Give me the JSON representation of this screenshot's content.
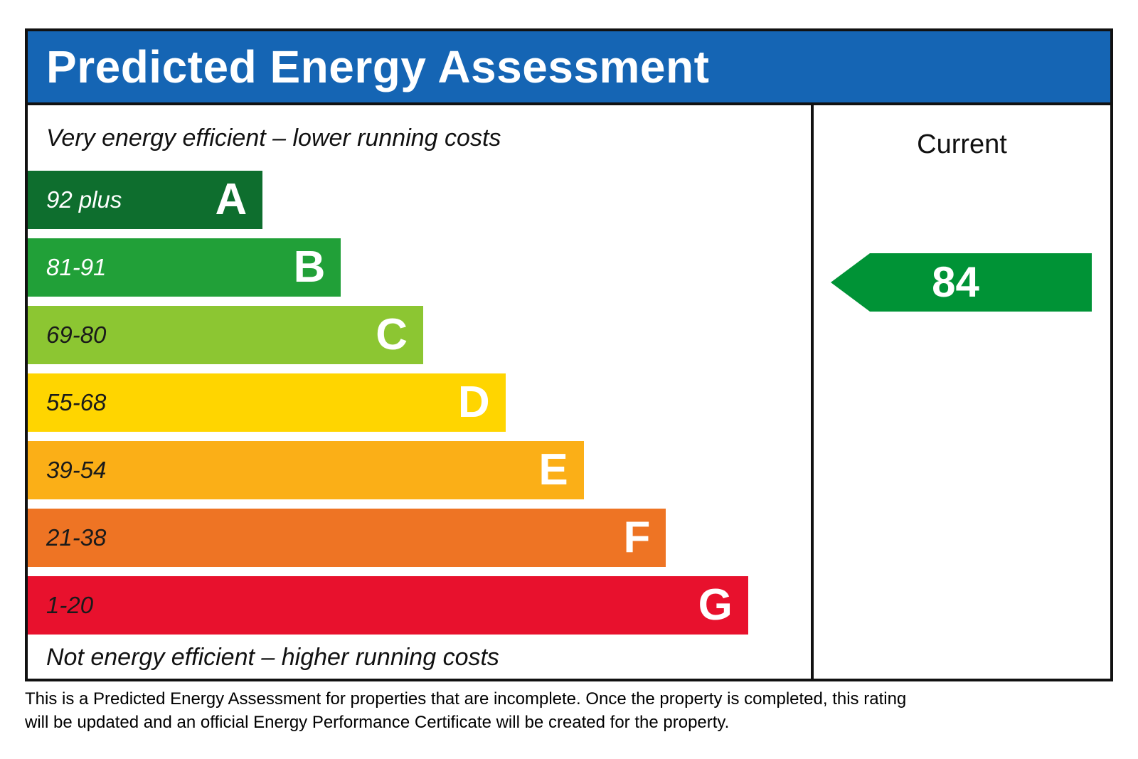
{
  "title": "Predicted Energy Assessment",
  "colors": {
    "header_blue": "#1565b4",
    "border_black": "#111111",
    "arrow_green": "#009336"
  },
  "captions": {
    "top": "Very energy efficient – lower running costs",
    "bottom": "Not energy efficient – higher running costs"
  },
  "current_column": {
    "header": "Current",
    "value": "84",
    "arrow_color": "#009336"
  },
  "chart_data": {
    "type": "bar",
    "title": "Predicted Energy Assessment",
    "orientation": "horizontal",
    "bands": [
      {
        "grade": "A",
        "range": "92 plus",
        "color": "#0e6e2e",
        "width_pct": 30,
        "range_label_color": "#ffffff"
      },
      {
        "grade": "B",
        "range": "81-91",
        "color": "#21a038",
        "width_pct": 40,
        "range_label_color": "#ffffff"
      },
      {
        "grade": "C",
        "range": "69-80",
        "color": "#8cc632",
        "width_pct": 50.5,
        "range_label_color": "#1a1a1a"
      },
      {
        "grade": "D",
        "range": "55-68",
        "color": "#ffd500",
        "width_pct": 61,
        "range_label_color": "#1a1a1a"
      },
      {
        "grade": "E",
        "range": "39-54",
        "color": "#fbaf17",
        "width_pct": 71,
        "range_label_color": "#1a1a1a"
      },
      {
        "grade": "F",
        "range": "21-38",
        "color": "#ee7424",
        "width_pct": 81.5,
        "range_label_color": "#1a1a1a"
      },
      {
        "grade": "G",
        "range": "1-20",
        "color": "#e8112d",
        "width_pct": 92,
        "range_label_color": "#1a1a1a"
      }
    ],
    "current": {
      "value": 84,
      "band": "B"
    },
    "legend_position": "none",
    "grid": false
  },
  "footnote": "This is a Predicted Energy Assessment for properties that are incomplete. Once the property is completed, this rating will be updated and an official Energy Performance Certificate will be created for the property."
}
